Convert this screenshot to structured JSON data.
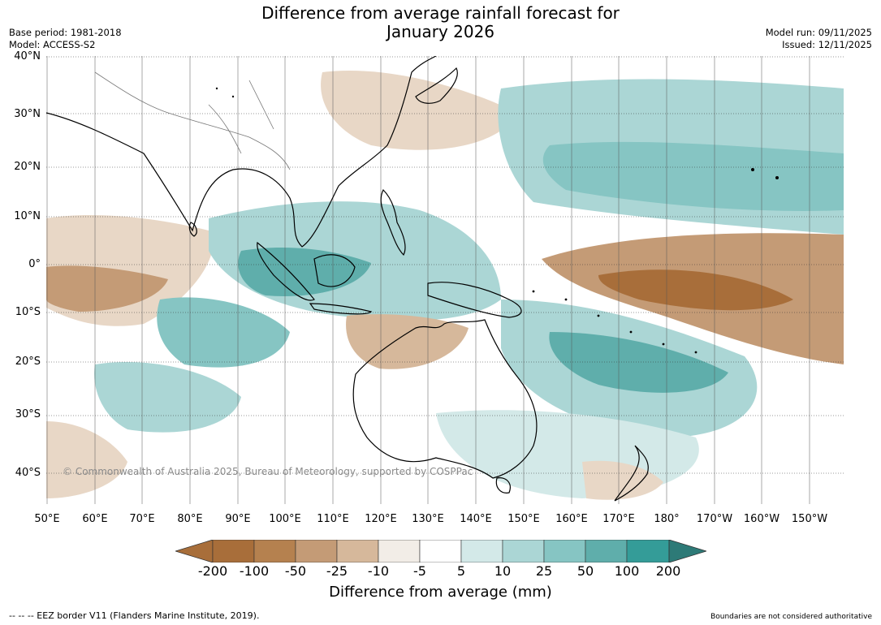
{
  "title": {
    "line1": "Difference from average rainfall forecast for",
    "line2": "January 2026"
  },
  "meta": {
    "base_period": "Base period: 1981-2018",
    "model": "Model: ACCESS-S2",
    "model_run": "Model run: 09/11/2025",
    "issued": "Issued: 12/11/2025"
  },
  "map": {
    "lat_labels": [
      "40°N",
      "30°N",
      "20°N",
      "10°N",
      "0°",
      "10°S",
      "20°S",
      "30°S",
      "40°S"
    ],
    "lon_labels": [
      "50°E",
      "60°E",
      "70°E",
      "80°E",
      "90°E",
      "100°E",
      "110°E",
      "120°E",
      "130°E",
      "140°E",
      "150°E",
      "160°E",
      "170°E",
      "180°",
      "170°W",
      "160°W",
      "150°W"
    ],
    "copyright": "© Commonwealth of Australia 2025, Bureau of Meteorology, supported by COSPPac"
  },
  "legend": {
    "ticks": [
      "-200",
      "-100",
      "-50",
      "-25",
      "-10",
      "-5",
      "5",
      "10",
      "25",
      "50",
      "100",
      "200"
    ],
    "colors": [
      "#a86e3a",
      "#b5814f",
      "#c49b76",
      "#d6b89b",
      "#e8d7c6",
      "#f2ede7",
      "#ffffff",
      "#d3e9e8",
      "#abd6d5",
      "#86c5c3",
      "#5faeab",
      "#349c98",
      "#2d7a77"
    ],
    "title": "Difference from average (mm)"
  },
  "footer": {
    "eez": "--  --  -- EEZ border V11 (Flanders Marine Institute, 2019).",
    "disclaimer": "Boundaries are not considered authoritative"
  }
}
